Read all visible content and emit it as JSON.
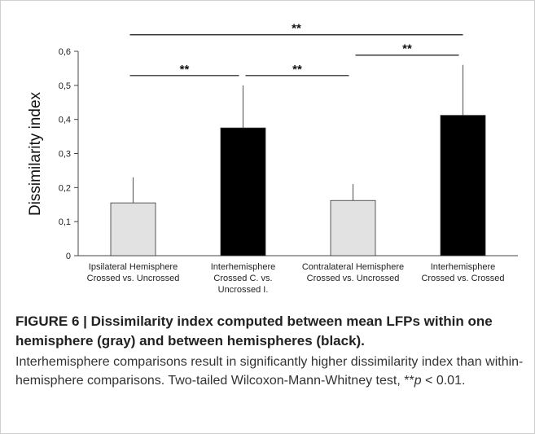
{
  "chart_data": {
    "type": "bar",
    "ylabel": "Dissimilarity index",
    "categories": [
      [
        "Ipsilateral Hemisphere",
        "Crossed vs. Uncrossed"
      ],
      [
        "Interhemisphere",
        "Crossed C. vs.",
        "Uncrossed I."
      ],
      [
        "Contralateral Hemisphere",
        "Crossed vs. Uncrossed"
      ],
      [
        "Interhemisphere",
        "Crossed vs. Crossed"
      ]
    ],
    "values": [
      0.155,
      0.375,
      0.162,
      0.412
    ],
    "errors": [
      0.075,
      0.125,
      0.048,
      0.148
    ],
    "colors": [
      "#e2e2e2",
      "#000000",
      "#e2e2e2",
      "#000000"
    ],
    "ylim": [
      0,
      0.6
    ],
    "yticks": [
      0,
      {
        "value": 0.1,
        "label": "0,1"
      },
      {
        "value": 0.2,
        "label": "0,2"
      },
      {
        "value": 0.3,
        "label": "0,3"
      },
      {
        "value": 0.4,
        "label": "0,4"
      },
      {
        "value": 0.5,
        "label": "0,5"
      },
      {
        "value": 0.6,
        "label": "0,6"
      }
    ],
    "annotations": [
      {
        "text": "**",
        "between": [
          0,
          3
        ]
      },
      {
        "text": "**",
        "between": [
          0,
          1
        ]
      },
      {
        "text": "**",
        "between": [
          1,
          2
        ]
      },
      {
        "text": "**",
        "between": [
          2,
          3
        ]
      }
    ]
  },
  "caption": {
    "title": "FIGURE 6 | Dissimilarity index computed between mean LFPs within one hemisphere (gray) and between hemispheres (black).",
    "body_before": "Interhemisphere comparisons result in significantly higher dissimilarity index than within-hemisphere comparisons. Two-tailed Wilcoxon-Mann-Whitney test, **",
    "body_italic": "p",
    "body_after": " < 0.01."
  }
}
